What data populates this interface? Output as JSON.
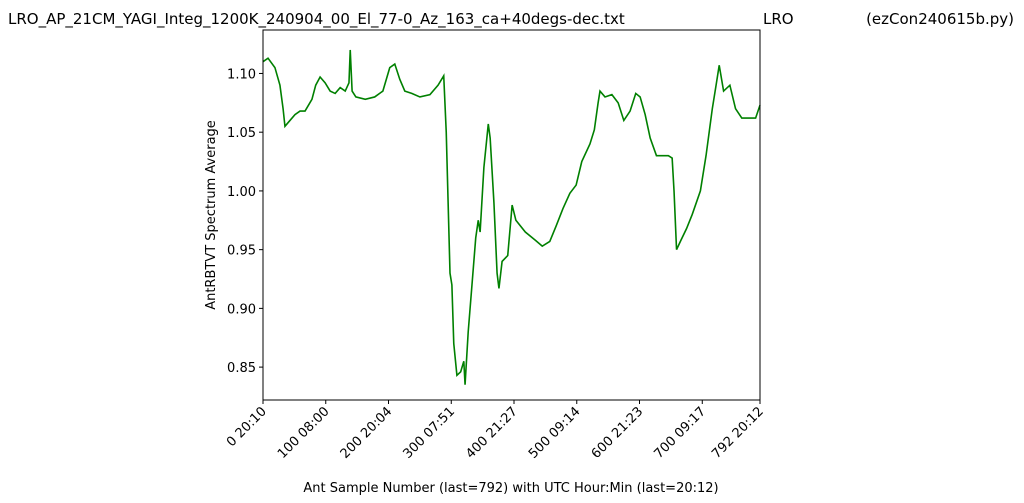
{
  "chart_data": {
    "type": "line",
    "title": "LRO_AP_21CM_YAGI_Integ_1200K_240904_00_El_77-0_Az_163_ca+40degs-dec.txt",
    "title_center": "LRO",
    "title_right": "(ezCon240615b.py)",
    "x_label": "Ant Sample Number (last=792) with UTC Hour:Min (last=20:12)",
    "y_label": "AntRBTVT Spectrum Average",
    "xlim": [
      0,
      792
    ],
    "ylim": [
      0.822,
      1.137
    ],
    "xticks": [
      {
        "value": 0,
        "label": "0  20:10"
      },
      {
        "value": 100,
        "label": "100  08:00"
      },
      {
        "value": 200,
        "label": "200  20:04"
      },
      {
        "value": 300,
        "label": "300  07:51"
      },
      {
        "value": 400,
        "label": "400  21:27"
      },
      {
        "value": 500,
        "label": "500  09:14"
      },
      {
        "value": 600,
        "label": "600  21:23"
      },
      {
        "value": 700,
        "label": "700  09:17"
      },
      {
        "value": 792,
        "label": "792  20:12"
      }
    ],
    "yticks": [
      0.85,
      {
        "value": 0.9,
        "label": "0.90"
      },
      0.95,
      {
        "value": 1.0,
        "label": "1.00"
      },
      1.05,
      {
        "value": 1.1,
        "label": "1.10"
      }
    ],
    "series": [
      {
        "name": "AntRBTVT",
        "color": "#008000",
        "x": [
          0,
          8,
          19,
          27,
          32,
          35,
          43,
          51,
          59,
          67,
          78,
          84,
          91,
          99,
          107,
          115,
          123,
          131,
          137,
          139,
          142,
          148,
          163,
          178,
          191,
          202,
          210,
          218,
          226,
          237,
          250,
          266,
          279,
          288,
          292,
          295,
          298,
          301,
          304,
          309,
          315,
          320,
          322,
          327,
          333,
          339,
          343,
          346,
          352,
          359,
          362,
          368,
          373,
          376,
          381,
          390,
          397,
          403,
          418,
          434,
          445,
          457,
          467,
          478,
          489,
          499,
          508,
          521,
          528,
          534,
          537,
          545,
          556,
          566,
          575,
          585,
          594,
          601,
          609,
          617,
          627,
          636,
          646,
          652,
          655,
          659,
          666,
          675,
          684,
          697,
          706,
          716,
          722,
          727,
          734,
          744,
          753,
          763,
          776,
          785,
          792
        ],
        "values": [
          1.11,
          1.113,
          1.105,
          1.09,
          1.07,
          1.055,
          1.06,
          1.065,
          1.068,
          1.068,
          1.078,
          1.09,
          1.097,
          1.092,
          1.085,
          1.083,
          1.088,
          1.085,
          1.092,
          1.12,
          1.085,
          1.08,
          1.078,
          1.08,
          1.085,
          1.105,
          1.108,
          1.095,
          1.085,
          1.083,
          1.08,
          1.082,
          1.09,
          1.098,
          1.05,
          0.99,
          0.93,
          0.92,
          0.87,
          0.843,
          0.846,
          0.855,
          0.835,
          0.88,
          0.92,
          0.96,
          0.975,
          0.965,
          1.02,
          1.057,
          1.045,
          0.99,
          0.93,
          0.917,
          0.94,
          0.945,
          0.988,
          0.975,
          0.965,
          0.958,
          0.953,
          0.957,
          0.97,
          0.985,
          0.998,
          1.005,
          1.025,
          1.04,
          1.052,
          1.075,
          1.085,
          1.08,
          1.082,
          1.075,
          1.06,
          1.068,
          1.083,
          1.08,
          1.065,
          1.045,
          1.03,
          1.03,
          1.03,
          1.028,
          1.0,
          0.95,
          0.958,
          0.968,
          0.98,
          1.0,
          1.03,
          1.07,
          1.09,
          1.107,
          1.085,
          1.09,
          1.07,
          1.062,
          1.062,
          1.062,
          1.073
        ]
      }
    ]
  }
}
